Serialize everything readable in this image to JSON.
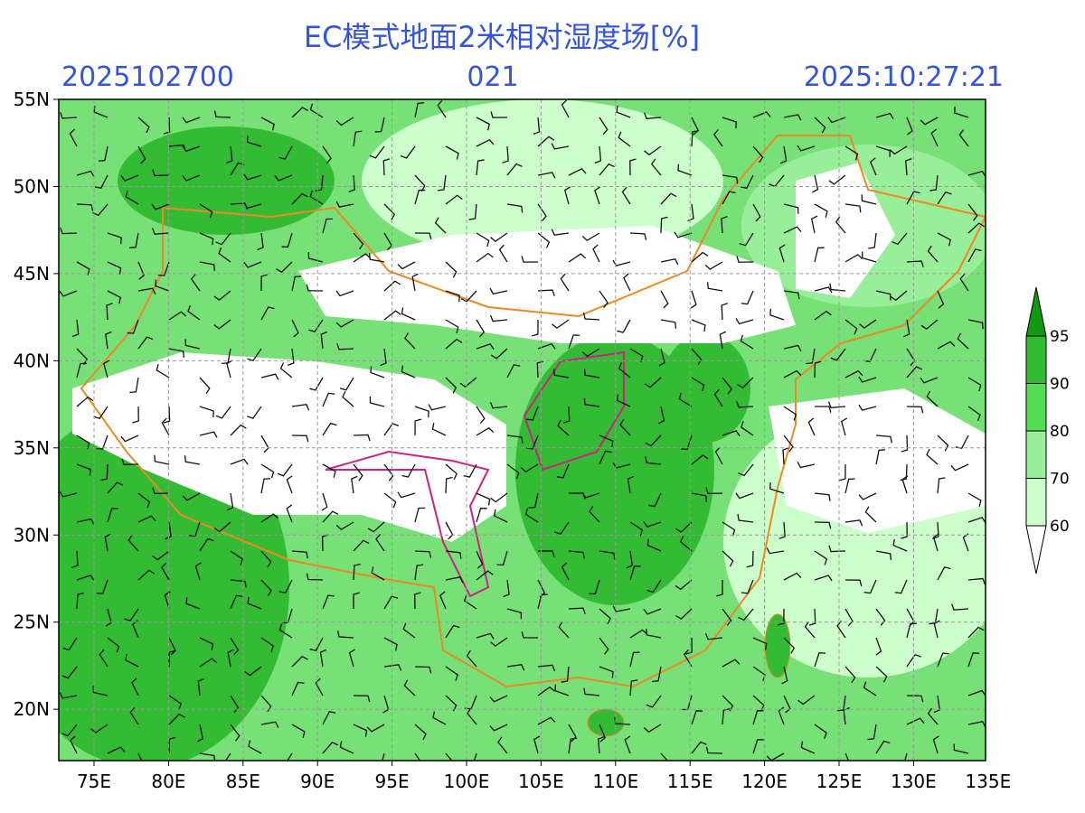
{
  "header": {
    "title": "EC模式地面2米相对湿度场[%]",
    "run": "2025102700",
    "forecast_hour": "021",
    "valid_time": "2025:10:27:21"
  },
  "lat_ticks": [
    {
      "value": 55,
      "label": "55N"
    },
    {
      "value": 50,
      "label": "50N"
    },
    {
      "value": 45,
      "label": "45N"
    },
    {
      "value": 40,
      "label": "40N"
    },
    {
      "value": 35,
      "label": "35N"
    },
    {
      "value": 30,
      "label": "30N"
    },
    {
      "value": 25,
      "label": "25N"
    },
    {
      "value": 20,
      "label": "20N"
    }
  ],
  "lon_ticks": [
    {
      "value": 75,
      "label": "75E"
    },
    {
      "value": 80,
      "label": "80E"
    },
    {
      "value": 85,
      "label": "85E"
    },
    {
      "value": 90,
      "label": "90E"
    },
    {
      "value": 95,
      "label": "95E"
    },
    {
      "value": 100,
      "label": "100E"
    },
    {
      "value": 105,
      "label": "105E"
    },
    {
      "value": 110,
      "label": "110E"
    },
    {
      "value": 115,
      "label": "115E"
    },
    {
      "value": 120,
      "label": "120E"
    },
    {
      "value": 125,
      "label": "125E"
    },
    {
      "value": 130,
      "label": "130E"
    },
    {
      "value": 135,
      "label": "135E"
    }
  ],
  "colorbar": {
    "levels": [
      60,
      70,
      80,
      90,
      95
    ],
    "colors": [
      "#ffffff",
      "#ccffcc",
      "#99ee99",
      "#55dd55",
      "#33bb33",
      "#119911"
    ]
  }
}
